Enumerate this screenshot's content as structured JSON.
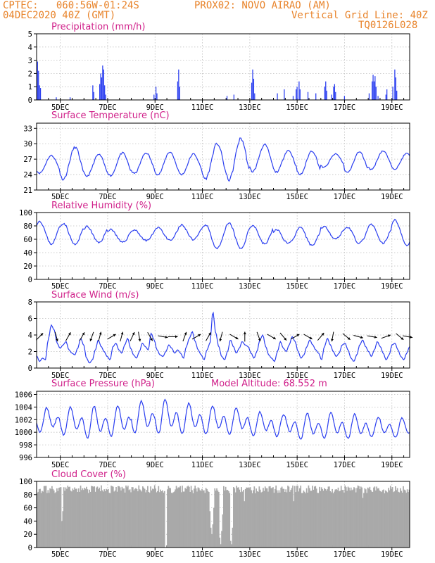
{
  "header": {
    "left1": "CPTEC:   060:56W-01:24S",
    "mid1": "PROX02: NOVO AIRAO (AM)",
    "left2": "04DEC2020 40Z (GMT)",
    "right2": "Vertical Grid Line: 40Z",
    "right3": "TQ0126L028"
  },
  "colors": {
    "header": "#e8832a",
    "title": "#d0208a",
    "series": "#2a3ef0",
    "cloud": "#a9a9a9",
    "grid": "#bfbfbf"
  },
  "x_axis": {
    "range_hours": [
      0,
      378
    ],
    "ticks": [
      {
        "label": "5DEC",
        "hour": 24
      },
      {
        "label": "7DEC",
        "hour": 72
      },
      {
        "label": "9DEC",
        "hour": 120
      },
      {
        "label": "11DEC",
        "hour": 168
      },
      {
        "label": "13DEC",
        "hour": 216
      },
      {
        "label": "15DEC",
        "hour": 264
      },
      {
        "label": "17DEC",
        "hour": 312
      },
      {
        "label": "19DEC",
        "hour": 360
      }
    ]
  },
  "chart_data": [
    {
      "type": "bar",
      "title": "Precipitation (mm/h)",
      "ylim": [
        0,
        5
      ],
      "yticks": [
        0,
        1,
        2,
        3,
        4,
        5
      ],
      "events": [
        {
          "x": 1,
          "v": 2.9
        },
        {
          "x": 2,
          "v": 2.2
        },
        {
          "x": 3,
          "v": 1.1
        },
        {
          "x": 4,
          "v": 0.9
        },
        {
          "x": 20,
          "v": 0.2
        },
        {
          "x": 34,
          "v": 0.2
        },
        {
          "x": 57,
          "v": 1.1
        },
        {
          "x": 58,
          "v": 0.6
        },
        {
          "x": 64,
          "v": 1.2
        },
        {
          "x": 65,
          "v": 2.0
        },
        {
          "x": 66,
          "v": 1.7
        },
        {
          "x": 67,
          "v": 2.6
        },
        {
          "x": 68,
          "v": 2.3
        },
        {
          "x": 69,
          "v": 1.1
        },
        {
          "x": 70,
          "v": 0.4
        },
        {
          "x": 119,
          "v": 0.4
        },
        {
          "x": 121,
          "v": 1.0
        },
        {
          "x": 122,
          "v": 0.5
        },
        {
          "x": 143,
          "v": 1.4
        },
        {
          "x": 144,
          "v": 2.3
        },
        {
          "x": 145,
          "v": 1.0
        },
        {
          "x": 193,
          "v": 0.3
        },
        {
          "x": 200,
          "v": 0.4
        },
        {
          "x": 218,
          "v": 1.3
        },
        {
          "x": 219,
          "v": 2.3
        },
        {
          "x": 220,
          "v": 1.6
        },
        {
          "x": 221,
          "v": 0.5
        },
        {
          "x": 244,
          "v": 0.5
        },
        {
          "x": 251,
          "v": 0.8
        },
        {
          "x": 260,
          "v": 0.3
        },
        {
          "x": 263,
          "v": 0.8
        },
        {
          "x": 264,
          "v": 1.0
        },
        {
          "x": 266,
          "v": 1.4
        },
        {
          "x": 267,
          "v": 0.8
        },
        {
          "x": 275,
          "v": 0.6
        },
        {
          "x": 283,
          "v": 0.5
        },
        {
          "x": 292,
          "v": 1.0
        },
        {
          "x": 293,
          "v": 1.4
        },
        {
          "x": 294,
          "v": 0.7
        },
        {
          "x": 299,
          "v": 0.4
        },
        {
          "x": 301,
          "v": 1.0
        },
        {
          "x": 302,
          "v": 1.2
        },
        {
          "x": 303,
          "v": 0.6
        },
        {
          "x": 312,
          "v": 0.3
        },
        {
          "x": 337,
          "v": 0.5
        },
        {
          "x": 340,
          "v": 1.4
        },
        {
          "x": 341,
          "v": 1.9
        },
        {
          "x": 342,
          "v": 1.4
        },
        {
          "x": 343,
          "v": 1.8
        },
        {
          "x": 344,
          "v": 1.0
        },
        {
          "x": 346,
          "v": 0.3
        },
        {
          "x": 354,
          "v": 0.4
        },
        {
          "x": 355,
          "v": 0.8
        },
        {
          "x": 361,
          "v": 1.0
        },
        {
          "x": 363,
          "v": 2.3
        },
        {
          "x": 364,
          "v": 1.7
        },
        {
          "x": 365,
          "v": 0.7
        }
      ]
    },
    {
      "type": "line",
      "title": "Surface Temperature (nC)",
      "ylim": [
        21,
        34
      ],
      "yticks": [
        21,
        24,
        27,
        30,
        33
      ],
      "mean": [
        26.0,
        26.2,
        25.8,
        26.0,
        26.2,
        26.2,
        26.0,
        26.6,
        27.0,
        27.2,
        26.6,
        26.3,
        26.7,
        26.4,
        26.8,
        26.6
      ],
      "amp": [
        3.4,
        6.2,
        4.2,
        4.4,
        4.0,
        4.4,
        4.0,
        6.8,
        8.0,
        5.2,
        4.2,
        4.6,
        2.6,
        4.0,
        3.6,
        3.0
      ],
      "phase": 0.6,
      "peak_hour": 15
    },
    {
      "type": "line",
      "title": "Relative Humidity (%)",
      "ylim": [
        0,
        100
      ],
      "yticks": [
        0,
        20,
        40,
        60,
        80,
        100
      ],
      "mean": [
        70,
        68,
        67,
        65,
        66,
        68,
        70,
        64,
        65,
        67,
        64,
        64,
        70,
        66,
        68,
        70
      ],
      "amp": [
        34,
        32,
        24,
        20,
        16,
        20,
        22,
        36,
        38,
        28,
        20,
        26,
        18,
        24,
        28,
        38
      ],
      "phase": 0.6,
      "peak_hour": 15
    },
    {
      "type": "line",
      "title": "Surface Wind (m/s)",
      "ylim": [
        0,
        8
      ],
      "yticks": [
        0,
        2,
        4,
        6,
        8
      ],
      "base": [
        1.5,
        0.8,
        1.2,
        1.0,
        3.5,
        5.2,
        4.6,
        3.0,
        2.4,
        2.8,
        3.2,
        2.2,
        1.8,
        1.6,
        2.4,
        3.6,
        2.8,
        1.2,
        0.6,
        1.0,
        2.2,
        3.4,
        2.6,
        2.0,
        1.4,
        1.0,
        2.6,
        3.0,
        2.2,
        1.8,
        2.8,
        3.6,
        2.4,
        1.6,
        1.2,
        2.0,
        3.0,
        2.6,
        2.2,
        4.2,
        3.4,
        2.2,
        1.6,
        1.4,
        2.0,
        2.8,
        2.4,
        1.8,
        2.2,
        1.8,
        1.2,
        2.6,
        3.6,
        4.4,
        3.2,
        2.2,
        1.6,
        1.0,
        2.2,
        3.0,
        6.8,
        4.2,
        2.6,
        1.4,
        1.0,
        2.0,
        3.4,
        2.6,
        1.8,
        2.4,
        3.2,
        2.8,
        2.6,
        1.8,
        1.2,
        2.0,
        3.4,
        4.0,
        2.6,
        1.6,
        1.2,
        0.8,
        2.0,
        3.2,
        2.4,
        2.0,
        2.8,
        3.8,
        3.2,
        2.0,
        1.2,
        1.6,
        2.6,
        3.4,
        2.8,
        2.2,
        1.8,
        1.0,
        2.6,
        3.6,
        2.8,
        2.0,
        1.4,
        1.8,
        2.8,
        3.0,
        2.2,
        1.2,
        0.8,
        1.6,
        2.8,
        3.4,
        2.6,
        2.0,
        1.4,
        2.2,
        3.2,
        2.6,
        1.8,
        1.0,
        1.6,
        2.8,
        3.0,
        2.2,
        1.4,
        1.0,
        1.8,
        2.6
      ],
      "arrows": [
        {
          "x": 3,
          "dir": 45
        },
        {
          "x": 20,
          "dir": 165
        },
        {
          "x": 32,
          "dir": 30
        },
        {
          "x": 46,
          "dir": 30
        },
        {
          "x": 56,
          "dir": 200
        },
        {
          "x": 64,
          "dir": 15
        },
        {
          "x": 76,
          "dir": 60
        },
        {
          "x": 86,
          "dir": 15
        },
        {
          "x": 97,
          "dir": 25
        },
        {
          "x": 104,
          "dir": 170
        },
        {
          "x": 115,
          "dir": 150
        },
        {
          "x": 128,
          "dir": 100
        },
        {
          "x": 138,
          "dir": 90
        },
        {
          "x": 150,
          "dir": 20
        },
        {
          "x": 162,
          "dir": 60
        },
        {
          "x": 174,
          "dir": 30
        },
        {
          "x": 187,
          "dir": 195
        },
        {
          "x": 200,
          "dir": 120
        },
        {
          "x": 211,
          "dir": 0
        },
        {
          "x": 225,
          "dir": 160
        },
        {
          "x": 238,
          "dir": 120
        },
        {
          "x": 250,
          "dir": 140
        },
        {
          "x": 262,
          "dir": 60
        },
        {
          "x": 275,
          "dir": 120
        },
        {
          "x": 288,
          "dir": 40
        },
        {
          "x": 300,
          "dir": 190
        },
        {
          "x": 314,
          "dir": 130
        },
        {
          "x": 326,
          "dir": 105
        },
        {
          "x": 340,
          "dir": 100
        },
        {
          "x": 354,
          "dir": 70
        },
        {
          "x": 368,
          "dir": 130
        },
        {
          "x": 376,
          "dir": 100
        }
      ]
    },
    {
      "type": "line",
      "title": "Surface Pressure (hPa)",
      "ylim": [
        996,
        1006.5
      ],
      "yticks": [
        996,
        998,
        1000,
        1002,
        1004,
        1006
      ],
      "mean": [
        1001.8,
        1001.6,
        1001.4,
        1001.6,
        1002.2,
        1002.3,
        1002.0,
        1001.8,
        1001.6,
        1001.2,
        1001.0,
        1000.8,
        1000.9,
        1000.8,
        1000.7,
        1000.6
      ],
      "amp12": [
        2.4,
        2.8,
        3.2,
        3.0,
        3.2,
        3.4,
        3.0,
        2.8,
        2.6,
        2.4,
        2.2,
        2.6,
        2.6,
        2.4,
        2.0,
        2.0
      ],
      "annotation": "Model Altitude: 68.552 m"
    },
    {
      "type": "area",
      "title": "Cloud Cover (%)",
      "ylim": [
        0,
        100
      ],
      "yticks": [
        0,
        20,
        40,
        60,
        80,
        100
      ],
      "typical": 88,
      "dips": [
        {
          "x": 25,
          "v": 40
        },
        {
          "x": 26,
          "v": 55
        },
        {
          "x": 130,
          "v": 0
        },
        {
          "x": 131,
          "v": 0
        },
        {
          "x": 175,
          "v": 55
        },
        {
          "x": 176,
          "v": 30
        },
        {
          "x": 177,
          "v": 20
        },
        {
          "x": 178,
          "v": 35
        },
        {
          "x": 179,
          "v": 60
        },
        {
          "x": 185,
          "v": 15
        },
        {
          "x": 186,
          "v": 5
        },
        {
          "x": 187,
          "v": 25
        },
        {
          "x": 188,
          "v": 50
        },
        {
          "x": 196,
          "v": 10
        },
        {
          "x": 197,
          "v": 5
        },
        {
          "x": 198,
          "v": 30
        },
        {
          "x": 210,
          "v": 70
        },
        {
          "x": 260,
          "v": 70
        },
        {
          "x": 330,
          "v": 75
        }
      ]
    }
  ]
}
